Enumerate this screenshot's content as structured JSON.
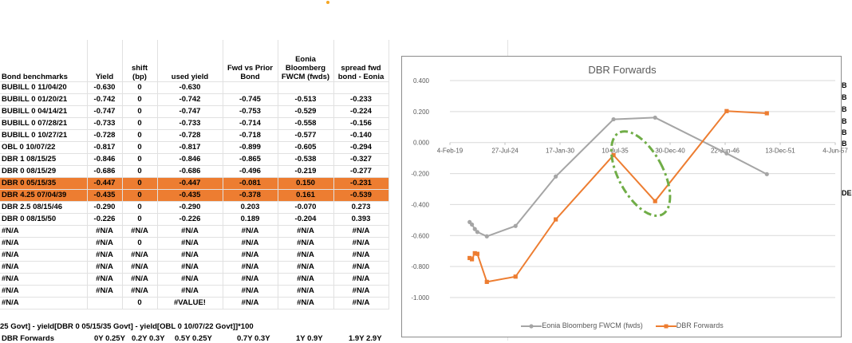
{
  "table": {
    "headers": [
      "Bond benchmarks",
      "Yield",
      "shift (bp)",
      "used yield",
      "Fwd vs Prior Bond",
      "Eonia Bloomberg FWCM (fwds)",
      "spread fwd bond - Eonia"
    ],
    "rows": [
      [
        "BUBILL 0 11/04/20",
        "-0.630",
        "0",
        "-0.630",
        "",
        "",
        ""
      ],
      [
        "BUBILL 0 01/20/21",
        "-0.742",
        "0",
        "-0.742",
        "-0.745",
        "-0.513",
        "-0.233"
      ],
      [
        "BUBILL 0 04/14/21",
        "-0.747",
        "0",
        "-0.747",
        "-0.753",
        "-0.529",
        "-0.224"
      ],
      [
        "BUBILL 0 07/28/21",
        "-0.733",
        "0",
        "-0.733",
        "-0.714",
        "-0.558",
        "-0.156"
      ],
      [
        "BUBILL 0 10/27/21",
        "-0.728",
        "0",
        "-0.728",
        "-0.718",
        "-0.577",
        "-0.140"
      ],
      [
        "OBL 0 10/07/22",
        "-0.817",
        "0",
        "-0.817",
        "-0.899",
        "-0.605",
        "-0.294"
      ],
      [
        "DBR 1 08/15/25",
        "-0.846",
        "0",
        "-0.846",
        "-0.865",
        "-0.538",
        "-0.327"
      ],
      [
        "DBR 0 08/15/29",
        "-0.686",
        "0",
        "-0.686",
        "-0.496",
        "-0.219",
        "-0.277"
      ],
      [
        "DBR 0 05/15/35",
        "-0.447",
        "0",
        "-0.447",
        "-0.081",
        "0.150",
        "-0.231"
      ],
      [
        "DBR 4.25 07/04/39",
        "-0.435",
        "0",
        "-0.435",
        "-0.378",
        "0.161",
        "-0.539"
      ],
      [
        "DBR 2.5 08/15/46",
        "-0.290",
        "0",
        "-0.290",
        "0.203",
        "-0.070",
        "0.273"
      ],
      [
        "DBR 0 08/15/50",
        "-0.226",
        "0",
        "-0.226",
        "0.189",
        "-0.204",
        "0.393"
      ],
      [
        "#N/A",
        "#N/A",
        "#N/A",
        "#N/A",
        "#N/A",
        "#N/A",
        "#N/A"
      ],
      [
        "#N/A",
        "#N/A",
        "0",
        "#N/A",
        "#N/A",
        "#N/A",
        "#N/A"
      ],
      [
        "#N/A",
        "#N/A",
        "#N/A",
        "#N/A",
        "#N/A",
        "#N/A",
        "#N/A"
      ],
      [
        "#N/A",
        "#N/A",
        "#N/A",
        "#N/A",
        "#N/A",
        "#N/A",
        "#N/A"
      ],
      [
        "#N/A",
        "#N/A",
        "#N/A",
        "#N/A",
        "#N/A",
        "#N/A",
        "#N/A"
      ],
      [
        "#N/A",
        "#N/A",
        "#N/A",
        "#N/A",
        "#N/A",
        "#N/A",
        "#N/A"
      ],
      [
        "#N/A",
        "",
        "0",
        "#VALUE!",
        "#N/A",
        "#N/A",
        "#N/A"
      ]
    ],
    "highlight_rows": [
      8,
      9
    ],
    "highlight_color": "#ed7d31",
    "formula_text": "25 Govt] - yield[DBR 0 05/15/35 Govt] - yield[OBL 0 10/07/22 Govt]]*100",
    "last_row": [
      "DBR Forwards",
      "0Y 0.25Y",
      "0.2Y 0.3Y",
      "0.5Y 0.25Y",
      "0.7Y 0.3Y",
      "1Y 0.9Y",
      "1.9Y 2.9Y"
    ]
  },
  "right_edge": [
    "B",
    "B",
    "B",
    "B",
    "B",
    "B",
    "DE"
  ],
  "chart_data": {
    "type": "line",
    "title": "DBR Forwards",
    "x_ticks": [
      "4-Feb-19",
      "27-Jul-24",
      "17-Jan-30",
      "10-Jul-35",
      "30-Dec-40",
      "22-Jun-46",
      "13-Dec-51",
      "4-Jun-57"
    ],
    "x_range": [
      "2019-02-04",
      "2057-06-04"
    ],
    "y_ticks": [
      "0.400",
      "0.200",
      "0.000",
      "-0.200",
      "-0.400",
      "-0.600",
      "-0.800",
      "-1.000"
    ],
    "ylim": [
      -1.0,
      0.4
    ],
    "grid": true,
    "legend_position": "bottom",
    "series": [
      {
        "name": "Eonia Bloomberg FWCM (fwds)",
        "color": "#a5a5a5",
        "marker": "circle",
        "points": [
          [
            "2021-01-20",
            -0.513
          ],
          [
            "2021-04-14",
            -0.529
          ],
          [
            "2021-07-28",
            -0.558
          ],
          [
            "2021-10-27",
            -0.577
          ],
          [
            "2022-10-07",
            -0.605
          ],
          [
            "2025-08-15",
            -0.538
          ],
          [
            "2029-08-15",
            -0.219
          ],
          [
            "2035-05-15",
            0.15
          ],
          [
            "2039-07-04",
            0.161
          ],
          [
            "2046-08-15",
            -0.07
          ],
          [
            "2050-08-15",
            -0.204
          ]
        ]
      },
      {
        "name": "DBR Forwards",
        "color": "#ed7d31",
        "marker": "square",
        "points": [
          [
            "2021-01-20",
            -0.745
          ],
          [
            "2021-04-14",
            -0.753
          ],
          [
            "2021-07-28",
            -0.714
          ],
          [
            "2021-10-27",
            -0.718
          ],
          [
            "2022-10-07",
            -0.899
          ],
          [
            "2025-08-15",
            -0.865
          ],
          [
            "2029-08-15",
            -0.496
          ],
          [
            "2035-05-15",
            -0.081
          ],
          [
            "2039-07-04",
            -0.378
          ],
          [
            "2046-08-15",
            0.203
          ],
          [
            "2050-08-15",
            0.189
          ]
        ]
      }
    ],
    "annotation_color": "#70ad47"
  }
}
